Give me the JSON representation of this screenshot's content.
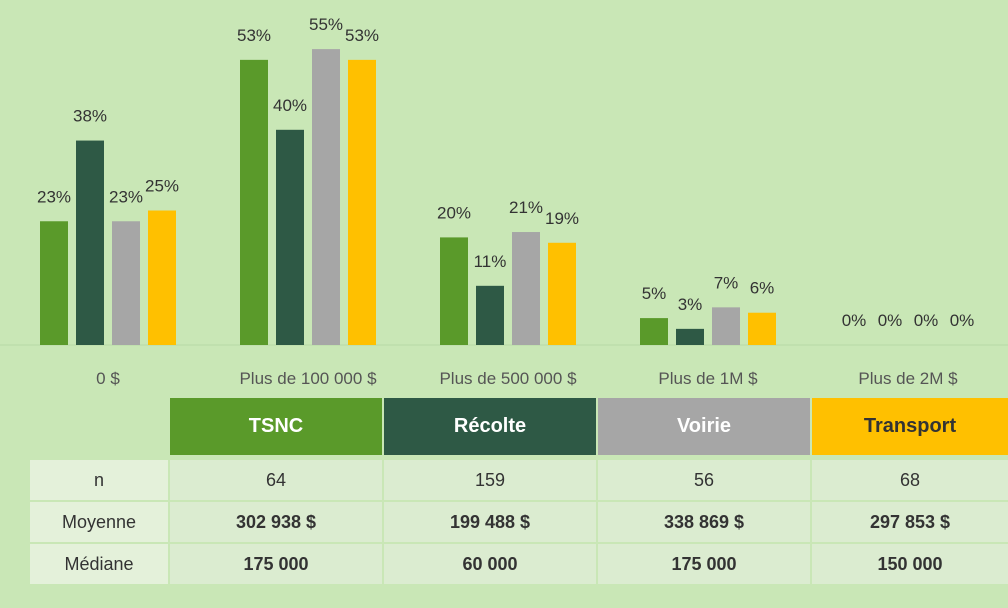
{
  "chart_data": {
    "type": "bar",
    "categories": [
      "0 $",
      "Plus de 100 000 $",
      "Plus de 500 000 $",
      "Plus de 1M $",
      "Plus de 2M $"
    ],
    "series": [
      {
        "name": "TSNC",
        "color": "#5a9a2a",
        "values": [
          23,
          53,
          20,
          5,
          0
        ],
        "value_labels": [
          "23%",
          "53%",
          "20%",
          "5%",
          "0%"
        ]
      },
      {
        "name": "Récolte",
        "color": "#2e5945",
        "values": [
          38,
          40,
          11,
          3,
          0
        ],
        "value_labels": [
          "38%",
          "40%",
          "11%",
          "3%",
          "0%"
        ]
      },
      {
        "name": "Voirie",
        "color": "#a6a6a6",
        "values": [
          23,
          55,
          21,
          7,
          0
        ],
        "value_labels": [
          "23%",
          "55%",
          "21%",
          "7%",
          "0%"
        ]
      },
      {
        "name": "Transport",
        "color": "#ffc000",
        "values": [
          25,
          53,
          19,
          6,
          0
        ],
        "value_labels": [
          "25%",
          "53%",
          "19%",
          "6%",
          "0%"
        ]
      }
    ]
  },
  "table": {
    "rows": [
      [
        "n",
        "64",
        "159",
        "56",
        "68"
      ],
      [
        "Moyenne",
        "302 938 $",
        "199 488 $",
        "338 869 $",
        "297 853 $"
      ],
      [
        "Médiane",
        "175 000",
        "60 000",
        "175 000",
        "150 000"
      ]
    ]
  }
}
